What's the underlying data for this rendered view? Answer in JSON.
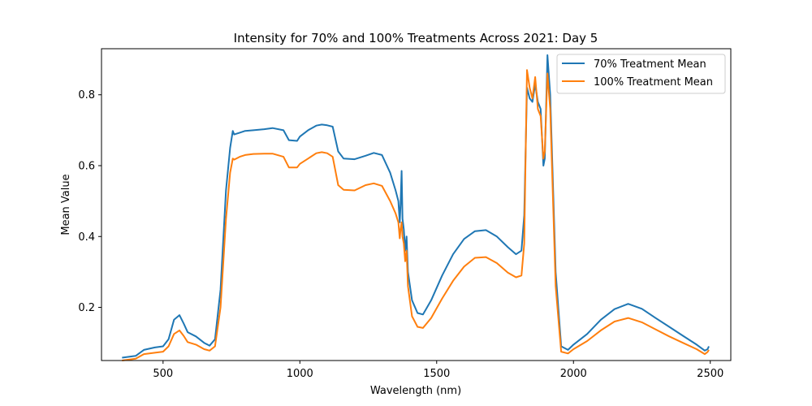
{
  "chart_data": {
    "type": "line",
    "title": "Intensity for 70% and 100% Treatments Across 2021: Day 5",
    "xlabel": "Wavelength (nm)",
    "ylabel": "Mean Value",
    "xlim": [
      275,
      2575
    ],
    "ylim": [
      0.05,
      0.93
    ],
    "xticks": [
      500,
      1000,
      1500,
      2000,
      2500
    ],
    "yticks": [
      0.2,
      0.4,
      0.6,
      0.8
    ],
    "xtick_labels": [
      "500",
      "1000",
      "1500",
      "2000",
      "2500"
    ],
    "ytick_labels": [
      "0.2",
      "0.4",
      "0.6",
      "0.8"
    ],
    "grid": false,
    "legend_position": "top-right",
    "series": [
      {
        "name": "70% Treatment Mean",
        "color": "#1f77b4",
        "points": [
          [
            350,
            0.058
          ],
          [
            400,
            0.063
          ],
          [
            430,
            0.08
          ],
          [
            470,
            0.087
          ],
          [
            500,
            0.09
          ],
          [
            520,
            0.11
          ],
          [
            540,
            0.165
          ],
          [
            560,
            0.178
          ],
          [
            575,
            0.155
          ],
          [
            590,
            0.13
          ],
          [
            620,
            0.118
          ],
          [
            650,
            0.1
          ],
          [
            670,
            0.092
          ],
          [
            690,
            0.11
          ],
          [
            710,
            0.25
          ],
          [
            730,
            0.53
          ],
          [
            745,
            0.65
          ],
          [
            755,
            0.698
          ],
          [
            760,
            0.688
          ],
          [
            780,
            0.693
          ],
          [
            800,
            0.698
          ],
          [
            830,
            0.7
          ],
          [
            870,
            0.703
          ],
          [
            900,
            0.706
          ],
          [
            940,
            0.7
          ],
          [
            960,
            0.672
          ],
          [
            990,
            0.67
          ],
          [
            1000,
            0.682
          ],
          [
            1030,
            0.7
          ],
          [
            1060,
            0.713
          ],
          [
            1080,
            0.716
          ],
          [
            1100,
            0.714
          ],
          [
            1120,
            0.71
          ],
          [
            1140,
            0.64
          ],
          [
            1160,
            0.62
          ],
          [
            1200,
            0.618
          ],
          [
            1240,
            0.628
          ],
          [
            1270,
            0.636
          ],
          [
            1300,
            0.63
          ],
          [
            1330,
            0.58
          ],
          [
            1350,
            0.53
          ],
          [
            1360,
            0.5
          ],
          [
            1365,
            0.44
          ],
          [
            1368,
            0.49
          ],
          [
            1372,
            0.585
          ],
          [
            1375,
            0.45
          ],
          [
            1380,
            0.42
          ],
          [
            1385,
            0.36
          ],
          [
            1390,
            0.4
          ],
          [
            1395,
            0.3
          ],
          [
            1410,
            0.22
          ],
          [
            1430,
            0.184
          ],
          [
            1450,
            0.18
          ],
          [
            1480,
            0.22
          ],
          [
            1520,
            0.29
          ],
          [
            1560,
            0.35
          ],
          [
            1600,
            0.393
          ],
          [
            1640,
            0.415
          ],
          [
            1680,
            0.418
          ],
          [
            1720,
            0.4
          ],
          [
            1760,
            0.37
          ],
          [
            1790,
            0.35
          ],
          [
            1810,
            0.36
          ],
          [
            1820,
            0.46
          ],
          [
            1830,
            0.82
          ],
          [
            1840,
            0.79
          ],
          [
            1850,
            0.78
          ],
          [
            1860,
            0.83
          ],
          [
            1870,
            0.78
          ],
          [
            1880,
            0.76
          ],
          [
            1890,
            0.6
          ],
          [
            1895,
            0.62
          ],
          [
            1905,
            0.912
          ],
          [
            1915,
            0.8
          ],
          [
            1935,
            0.3
          ],
          [
            1955,
            0.09
          ],
          [
            1980,
            0.08
          ],
          [
            2000,
            0.095
          ],
          [
            2050,
            0.125
          ],
          [
            2100,
            0.165
          ],
          [
            2150,
            0.195
          ],
          [
            2200,
            0.21
          ],
          [
            2250,
            0.196
          ],
          [
            2300,
            0.17
          ],
          [
            2350,
            0.145
          ],
          [
            2400,
            0.12
          ],
          [
            2450,
            0.095
          ],
          [
            2480,
            0.078
          ],
          [
            2490,
            0.082
          ],
          [
            2495,
            0.09
          ]
        ]
      },
      {
        "name": "100% Treatment Mean",
        "color": "#ff7f0e",
        "points": [
          [
            350,
            0.05
          ],
          [
            400,
            0.055
          ],
          [
            430,
            0.068
          ],
          [
            470,
            0.072
          ],
          [
            500,
            0.075
          ],
          [
            520,
            0.09
          ],
          [
            540,
            0.125
          ],
          [
            560,
            0.135
          ],
          [
            575,
            0.12
          ],
          [
            590,
            0.102
          ],
          [
            620,
            0.095
          ],
          [
            650,
            0.082
          ],
          [
            670,
            0.078
          ],
          [
            690,
            0.09
          ],
          [
            710,
            0.2
          ],
          [
            730,
            0.45
          ],
          [
            745,
            0.58
          ],
          [
            755,
            0.62
          ],
          [
            760,
            0.617
          ],
          [
            780,
            0.625
          ],
          [
            800,
            0.63
          ],
          [
            830,
            0.633
          ],
          [
            870,
            0.634
          ],
          [
            900,
            0.634
          ],
          [
            940,
            0.625
          ],
          [
            960,
            0.595
          ],
          [
            990,
            0.595
          ],
          [
            1000,
            0.605
          ],
          [
            1030,
            0.62
          ],
          [
            1060,
            0.635
          ],
          [
            1080,
            0.638
          ],
          [
            1100,
            0.635
          ],
          [
            1120,
            0.625
          ],
          [
            1140,
            0.545
          ],
          [
            1160,
            0.532
          ],
          [
            1200,
            0.53
          ],
          [
            1240,
            0.545
          ],
          [
            1270,
            0.55
          ],
          [
            1300,
            0.543
          ],
          [
            1330,
            0.5
          ],
          [
            1350,
            0.465
          ],
          [
            1360,
            0.44
          ],
          [
            1365,
            0.395
          ],
          [
            1368,
            0.42
          ],
          [
            1372,
            0.44
          ],
          [
            1375,
            0.4
          ],
          [
            1380,
            0.38
          ],
          [
            1385,
            0.33
          ],
          [
            1390,
            0.36
          ],
          [
            1395,
            0.26
          ],
          [
            1410,
            0.175
          ],
          [
            1430,
            0.145
          ],
          [
            1450,
            0.142
          ],
          [
            1480,
            0.17
          ],
          [
            1520,
            0.225
          ],
          [
            1560,
            0.275
          ],
          [
            1600,
            0.315
          ],
          [
            1640,
            0.34
          ],
          [
            1680,
            0.342
          ],
          [
            1720,
            0.325
          ],
          [
            1760,
            0.298
          ],
          [
            1790,
            0.285
          ],
          [
            1810,
            0.29
          ],
          [
            1820,
            0.38
          ],
          [
            1830,
            0.87
          ],
          [
            1840,
            0.82
          ],
          [
            1850,
            0.79
          ],
          [
            1860,
            0.85
          ],
          [
            1870,
            0.76
          ],
          [
            1880,
            0.74
          ],
          [
            1890,
            0.62
          ],
          [
            1895,
            0.64
          ],
          [
            1905,
            0.86
          ],
          [
            1915,
            0.76
          ],
          [
            1935,
            0.26
          ],
          [
            1955,
            0.075
          ],
          [
            1980,
            0.07
          ],
          [
            2000,
            0.082
          ],
          [
            2050,
            0.105
          ],
          [
            2100,
            0.135
          ],
          [
            2150,
            0.16
          ],
          [
            2200,
            0.17
          ],
          [
            2250,
            0.158
          ],
          [
            2300,
            0.138
          ],
          [
            2350,
            0.118
          ],
          [
            2400,
            0.1
          ],
          [
            2450,
            0.082
          ],
          [
            2480,
            0.068
          ],
          [
            2490,
            0.074
          ],
          [
            2495,
            0.08
          ]
        ]
      }
    ]
  }
}
